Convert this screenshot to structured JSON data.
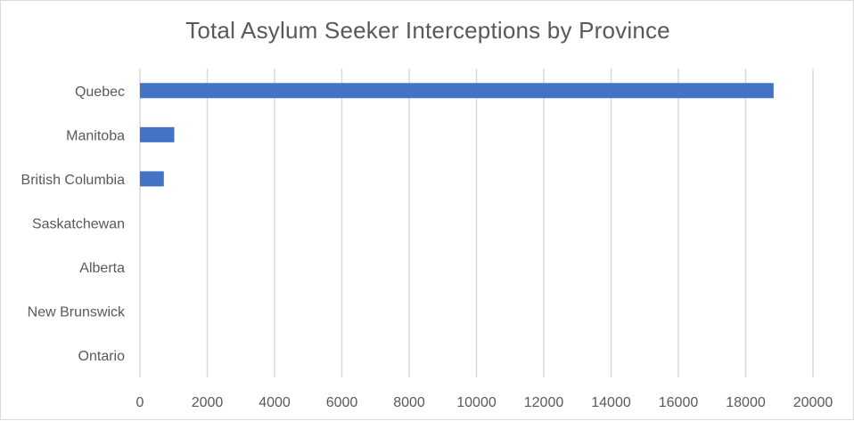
{
  "chart_data": {
    "type": "bar",
    "orientation": "horizontal",
    "title": "Total Asylum Seeker Interceptions by Province",
    "xlabel": "",
    "ylabel": "",
    "categories": [
      "Quebec",
      "Manitoba",
      "British Columbia",
      "Saskatchewan",
      "Alberta",
      "New Brunswick",
      "Ontario"
    ],
    "values": [
      18830,
      1020,
      710,
      0,
      0,
      0,
      0
    ],
    "xlim": [
      0,
      20000
    ],
    "xticks": [
      0,
      2000,
      4000,
      6000,
      8000,
      10000,
      12000,
      14000,
      16000,
      18000,
      20000
    ],
    "xtick_labels": [
      "0",
      "2000",
      "4000",
      "6000",
      "8000",
      "10000",
      "12000",
      "14000",
      "16000",
      "18000",
      "20000"
    ],
    "grid": "vertical",
    "legend": "none",
    "colors": {
      "bar": "#4472c4",
      "grid": "#d9d9d9",
      "text": "#595959"
    }
  }
}
